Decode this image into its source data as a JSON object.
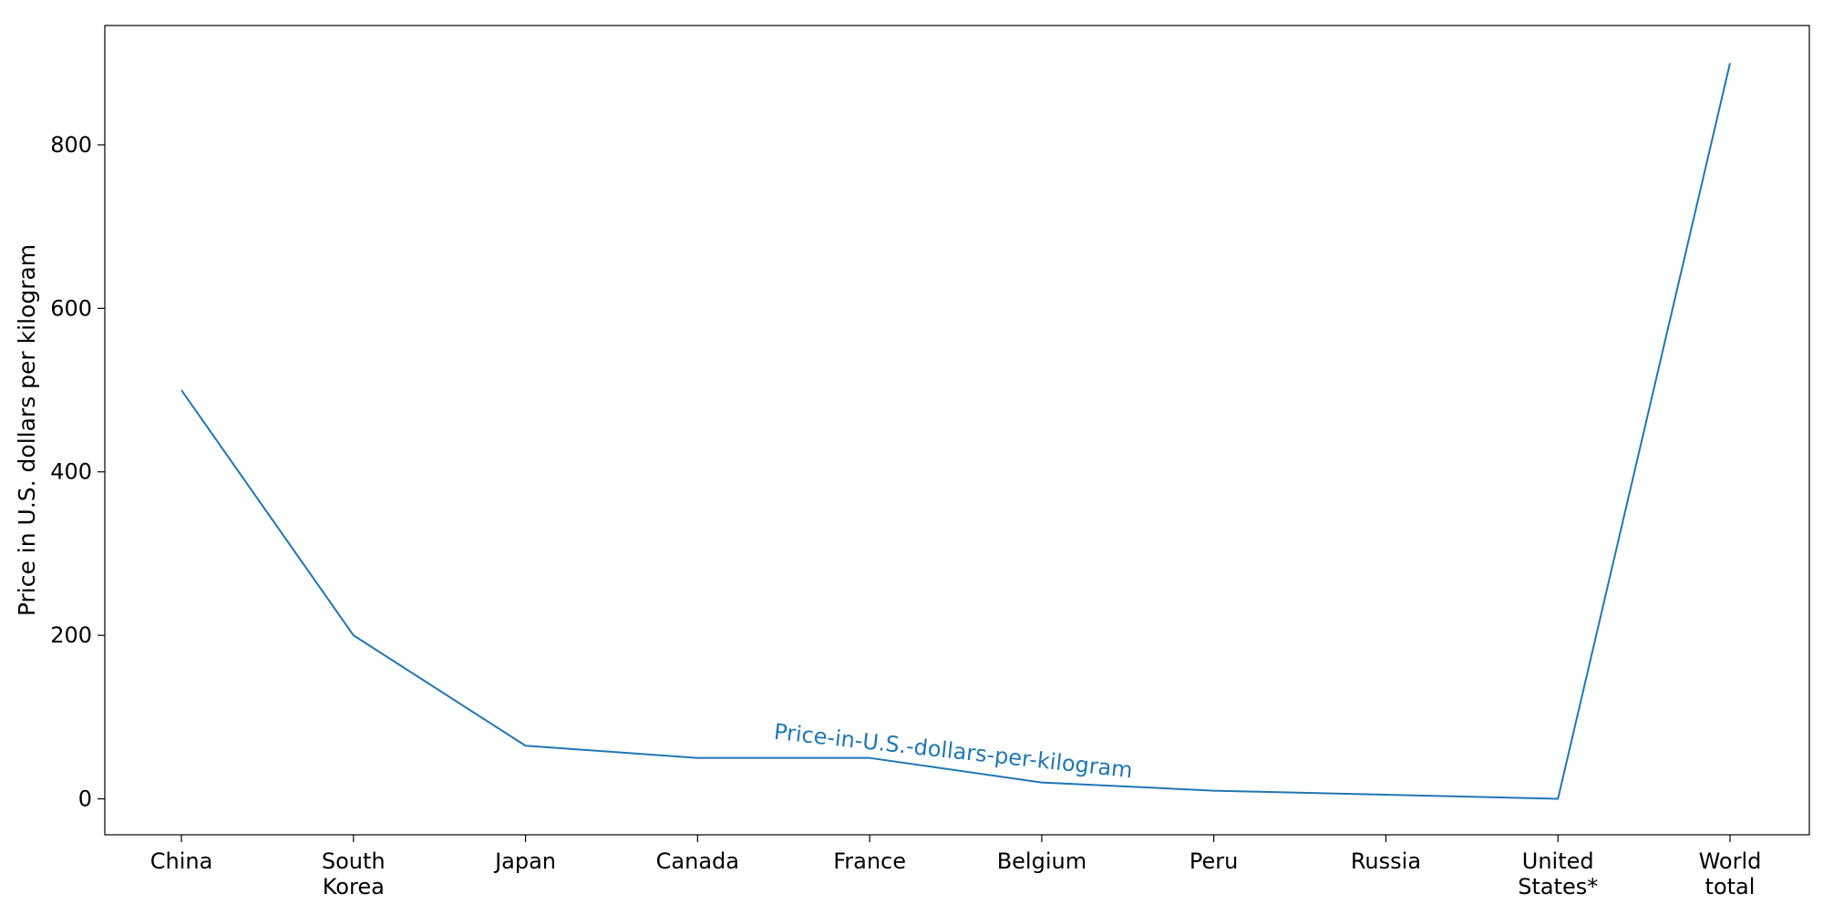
{
  "chart_data": {
    "type": "line",
    "categories": [
      [
        "China"
      ],
      [
        "South",
        "Korea"
      ],
      [
        "Japan"
      ],
      [
        "Canada"
      ],
      [
        "France"
      ],
      [
        "Belgium"
      ],
      [
        "Peru"
      ],
      [
        "Russia"
      ],
      [
        "United",
        "States*"
      ],
      [
        "World",
        "total"
      ]
    ],
    "series": [
      {
        "name": "",
        "values": [
          500,
          200,
          65,
          50,
          50,
          20,
          10,
          5,
          0,
          900
        ],
        "color": "#1f77b4"
      }
    ],
    "inline_line_label": "Price-in-U.S.-dollars-per-kilogram",
    "title": "",
    "xlabel": "",
    "ylabel": "Price in U.S. dollars per kilogram",
    "ylim": [
      -44,
      946
    ],
    "yticks": [
      0,
      200,
      400,
      600,
      800
    ],
    "grid": false,
    "legend": "none"
  }
}
